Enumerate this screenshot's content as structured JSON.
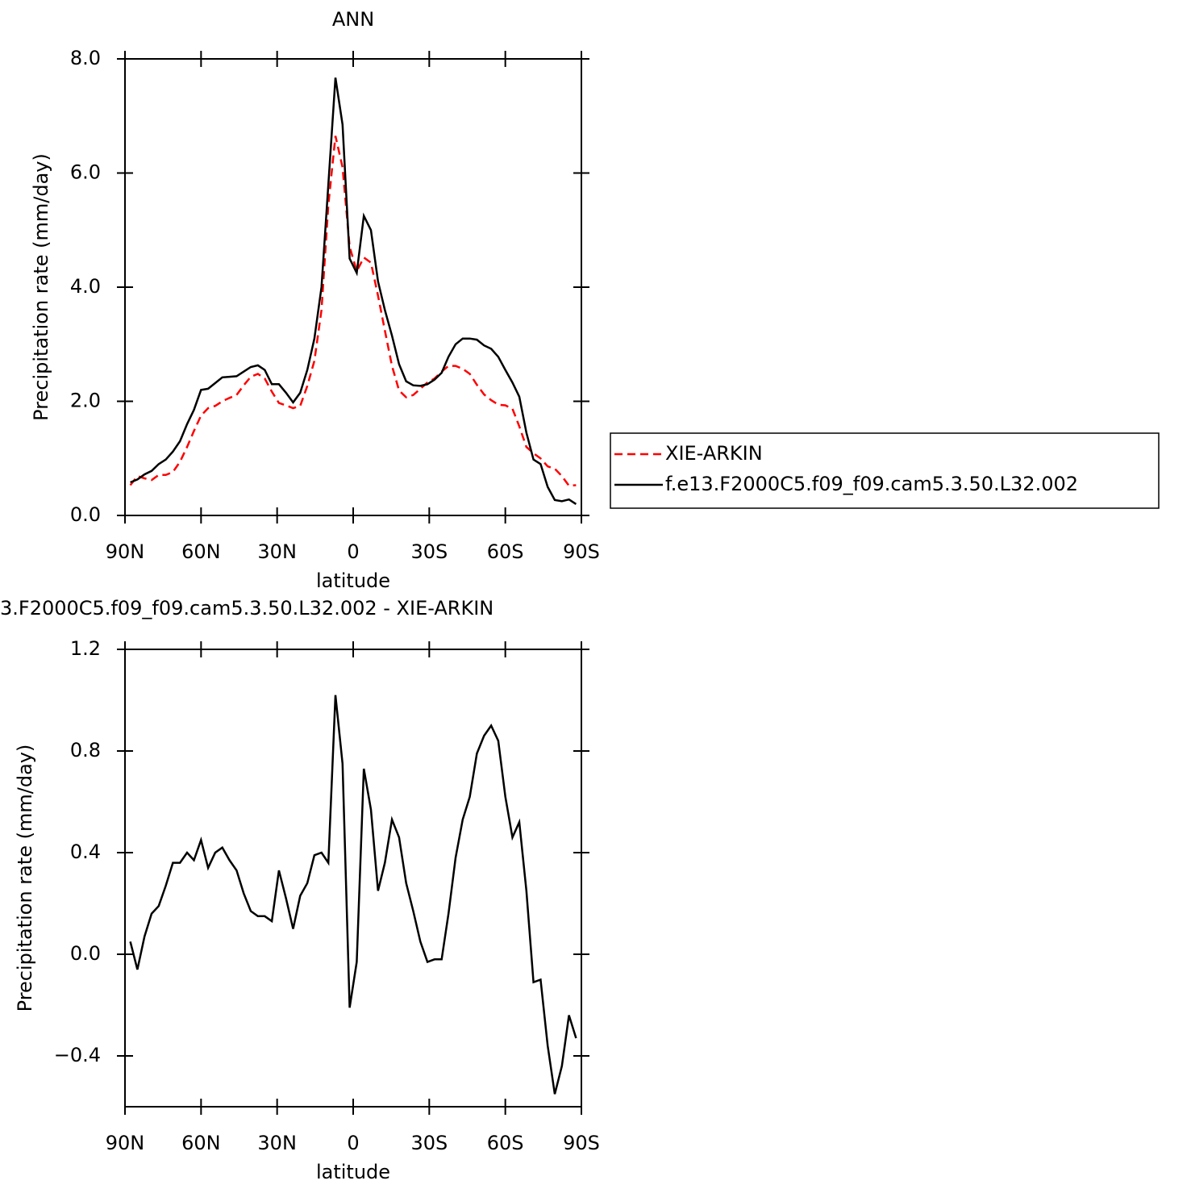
{
  "chart_data": [
    {
      "type": "line",
      "title": "ANN",
      "xlabel": "latitude",
      "ylabel": "Precipitation rate (mm/day)",
      "x": [
        87.9,
        85.1,
        82.3,
        79.5,
        76.7,
        73.9,
        71.1,
        68.3,
        65.5,
        62.8,
        60.0,
        57.2,
        54.4,
        51.6,
        48.8,
        46.0,
        43.2,
        40.4,
        37.6,
        34.9,
        32.1,
        29.3,
        26.5,
        23.7,
        20.9,
        18.1,
        15.3,
        12.5,
        9.8,
        7.0,
        4.2,
        1.4,
        -1.4,
        -4.2,
        -7.0,
        -9.8,
        -12.5,
        -15.3,
        -18.1,
        -20.9,
        -23.7,
        -26.5,
        -29.3,
        -32.1,
        -34.9,
        -37.6,
        -40.4,
        -43.2,
        -46.0,
        -48.8,
        -51.6,
        -54.4,
        -57.2,
        -60.0,
        -62.8,
        -65.5,
        -68.3,
        -71.1,
        -73.9,
        -76.7,
        -79.5,
        -82.3,
        -85.1,
        -87.9
      ],
      "series": [
        {
          "name": "XIE-ARKIN",
          "color": "#ff0000",
          "style": "dashed",
          "values": [
            0.53,
            0.69,
            0.65,
            0.62,
            0.71,
            0.71,
            0.76,
            0.94,
            1.2,
            1.48,
            1.75,
            1.88,
            1.92,
            2.0,
            2.06,
            2.11,
            2.28,
            2.43,
            2.48,
            2.4,
            2.17,
            1.97,
            1.93,
            1.88,
            1.92,
            2.27,
            2.71,
            3.6,
            5.44,
            6.65,
            6.1,
            4.71,
            4.28,
            4.52,
            4.43,
            3.85,
            3.24,
            2.62,
            2.19,
            2.07,
            2.11,
            2.22,
            2.33,
            2.4,
            2.52,
            2.62,
            2.62,
            2.57,
            2.48,
            2.29,
            2.12,
            2.02,
            1.94,
            1.93,
            1.87,
            1.56,
            1.2,
            1.09,
            1.0,
            0.86,
            0.82,
            0.69,
            0.52,
            0.53
          ]
        },
        {
          "name": "f.e13.F2000C5.f09_f09.cam5.3.50.L32.002",
          "color": "#000000",
          "style": "solid",
          "values": [
            0.58,
            0.63,
            0.72,
            0.78,
            0.9,
            0.98,
            1.12,
            1.3,
            1.6,
            1.85,
            2.2,
            2.22,
            2.32,
            2.42,
            2.43,
            2.44,
            2.52,
            2.6,
            2.63,
            2.55,
            2.3,
            2.3,
            2.15,
            1.98,
            2.15,
            2.55,
            3.1,
            4.0,
            5.8,
            7.67,
            6.85,
            4.5,
            4.25,
            5.25,
            5.0,
            4.1,
            3.6,
            3.15,
            2.65,
            2.35,
            2.28,
            2.27,
            2.3,
            2.38,
            2.5,
            2.78,
            3.0,
            3.1,
            3.1,
            3.08,
            2.98,
            2.92,
            2.78,
            2.55,
            2.33,
            2.08,
            1.45,
            0.98,
            0.9,
            0.5,
            0.27,
            0.25,
            0.28,
            0.2
          ]
        }
      ],
      "xlim": [
        90,
        -90
      ],
      "xticks": [
        {
          "value": 90,
          "label": "90N"
        },
        {
          "value": 60,
          "label": "60N"
        },
        {
          "value": 30,
          "label": "30N"
        },
        0,
        {
          "value": -30,
          "label": "30S"
        },
        {
          "value": -60,
          "label": "60S"
        },
        {
          "value": -90,
          "label": "90S"
        }
      ],
      "ylim": [
        0,
        8
      ],
      "yticks": [
        {
          "value": 0,
          "label": "0.0"
        },
        {
          "value": 2,
          "label": "2.0"
        },
        {
          "value": 4,
          "label": "4.0"
        },
        {
          "value": 6,
          "label": "6.0"
        },
        {
          "value": 8,
          "label": "8.0"
        }
      ],
      "legend": "right"
    },
    {
      "type": "line",
      "title": "3.F2000C5.f09_f09.cam5.3.50.L32.002 - XIE-ARKIN",
      "xlabel": "latitude",
      "ylabel": "Precipitation rate (mm/day)",
      "x": [
        87.9,
        85.1,
        82.3,
        79.5,
        76.7,
        73.9,
        71.1,
        68.3,
        65.5,
        62.8,
        60.0,
        57.2,
        54.4,
        51.6,
        48.8,
        46.0,
        43.2,
        40.4,
        37.6,
        34.9,
        32.1,
        29.3,
        26.5,
        23.7,
        20.9,
        18.1,
        15.3,
        12.5,
        9.8,
        7.0,
        4.2,
        1.4,
        -1.4,
        -4.2,
        -7.0,
        -9.8,
        -12.5,
        -15.3,
        -18.1,
        -20.9,
        -23.7,
        -26.5,
        -29.3,
        -32.1,
        -34.9,
        -37.6,
        -40.4,
        -43.2,
        -46.0,
        -48.8,
        -51.6,
        -54.4,
        -57.2,
        -60.0,
        -62.8,
        -65.5,
        -68.3,
        -71.1,
        -73.9,
        -76.7,
        -79.5,
        -82.3,
        -85.1,
        -87.9
      ],
      "values": [
        0.05,
        -0.06,
        0.07,
        0.16,
        0.19,
        0.27,
        0.36,
        0.36,
        0.4,
        0.37,
        0.45,
        0.34,
        0.4,
        0.42,
        0.37,
        0.33,
        0.24,
        0.17,
        0.15,
        0.15,
        0.13,
        0.33,
        0.22,
        0.1,
        0.23,
        0.28,
        0.39,
        0.4,
        0.36,
        1.02,
        0.75,
        -0.21,
        -0.03,
        0.73,
        0.57,
        0.25,
        0.36,
        0.53,
        0.46,
        0.28,
        0.17,
        0.05,
        -0.03,
        -0.02,
        -0.02,
        0.16,
        0.38,
        0.53,
        0.62,
        0.79,
        0.86,
        0.9,
        0.84,
        0.62,
        0.46,
        0.52,
        0.25,
        -0.11,
        -0.1,
        -0.36,
        -0.55,
        -0.44,
        -0.24,
        -0.33
      ],
      "color": "#000000",
      "xlim": [
        90,
        -90
      ],
      "xticks": [
        {
          "value": 90,
          "label": "90N"
        },
        {
          "value": 60,
          "label": "60N"
        },
        {
          "value": 30,
          "label": "30N"
        },
        0,
        {
          "value": -30,
          "label": "30S"
        },
        {
          "value": -60,
          "label": "60S"
        },
        {
          "value": -90,
          "label": "90S"
        }
      ],
      "ylim": [
        -0.6,
        1.2
      ],
      "yticks": [
        {
          "value": -0.4,
          "label": "−0.4"
        },
        {
          "value": 0,
          "label": "0.0"
        },
        0.4,
        0.8,
        1.2
      ]
    }
  ]
}
